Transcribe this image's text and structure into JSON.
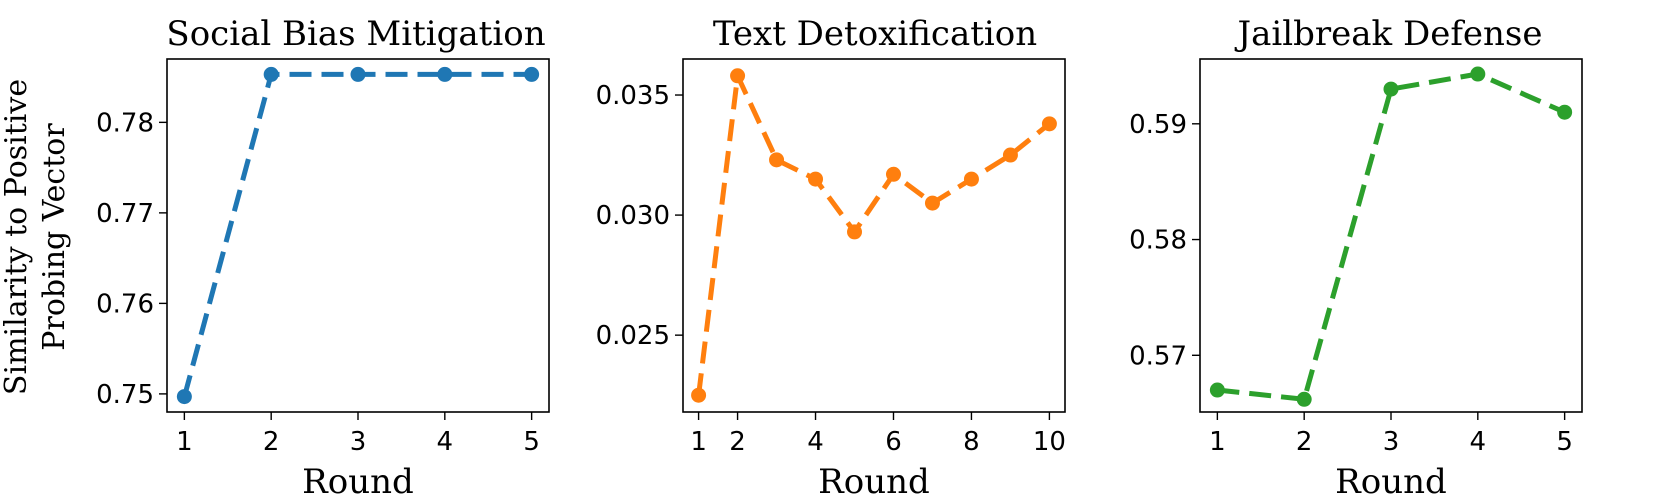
{
  "figure": {
    "ylabel_line1": "Similarity to Positive",
    "ylabel_line2": "Probing Vector"
  },
  "chart_data": [
    {
      "type": "line",
      "title": "Social Bias Mitigation",
      "xlabel": "Round",
      "ylabel": "Similarity to Positive Probing Vector",
      "x": [
        1,
        2,
        3,
        4,
        5
      ],
      "series": [
        {
          "values": [
            0.7497,
            0.7853,
            0.7853,
            0.7853,
            0.7853
          ],
          "color": "#1f77b4"
        }
      ],
      "xticks": [
        1,
        2,
        3,
        4,
        5
      ],
      "xtick_labels": [
        "1",
        "2",
        "3",
        "4",
        "5"
      ],
      "yticks": [
        0.75,
        0.76,
        0.77,
        0.78
      ],
      "ytick_labels": [
        "0.75",
        "0.76",
        "0.77",
        "0.78"
      ],
      "xlim": [
        0.8,
        5.2
      ],
      "ylim": [
        0.748,
        0.787
      ],
      "line_style": "dashed",
      "marker": "circle",
      "grid": false
    },
    {
      "type": "line",
      "title": "Text Detoxification",
      "xlabel": "Round",
      "ylabel": "",
      "x": [
        1,
        2,
        3,
        4,
        5,
        6,
        7,
        8,
        9,
        10
      ],
      "series": [
        {
          "values": [
            0.0225,
            0.0358,
            0.0323,
            0.0315,
            0.0293,
            0.0317,
            0.0305,
            0.0315,
            0.0325,
            0.0338
          ],
          "color": "#ff7f0e"
        }
      ],
      "xticks": [
        1,
        2,
        4,
        6,
        8,
        10
      ],
      "xtick_labels": [
        "1",
        "2",
        "4",
        "6",
        "8",
        "10"
      ],
      "yticks": [
        0.025,
        0.03,
        0.035
      ],
      "ytick_labels": [
        "0.025",
        "0.030",
        "0.035"
      ],
      "xlim": [
        0.6,
        10.4
      ],
      "ylim": [
        0.0218,
        0.0365
      ],
      "line_style": "dashed",
      "marker": "circle",
      "grid": false
    },
    {
      "type": "line",
      "title": "Jailbreak Defense",
      "xlabel": "Round",
      "ylabel": "",
      "x": [
        1,
        2,
        3,
        4,
        5
      ],
      "series": [
        {
          "values": [
            0.567,
            0.5662,
            0.593,
            0.5943,
            0.591
          ],
          "color": "#2ca02c"
        }
      ],
      "xticks": [
        1,
        2,
        3,
        4,
        5
      ],
      "xtick_labels": [
        "1",
        "2",
        "3",
        "4",
        "5"
      ],
      "yticks": [
        0.57,
        0.58,
        0.59
      ],
      "ytick_labels": [
        "0.57",
        "0.58",
        "0.59"
      ],
      "xlim": [
        0.8,
        5.2
      ],
      "ylim": [
        0.5651,
        0.5956
      ],
      "line_style": "dashed",
      "marker": "circle",
      "grid": false
    }
  ]
}
